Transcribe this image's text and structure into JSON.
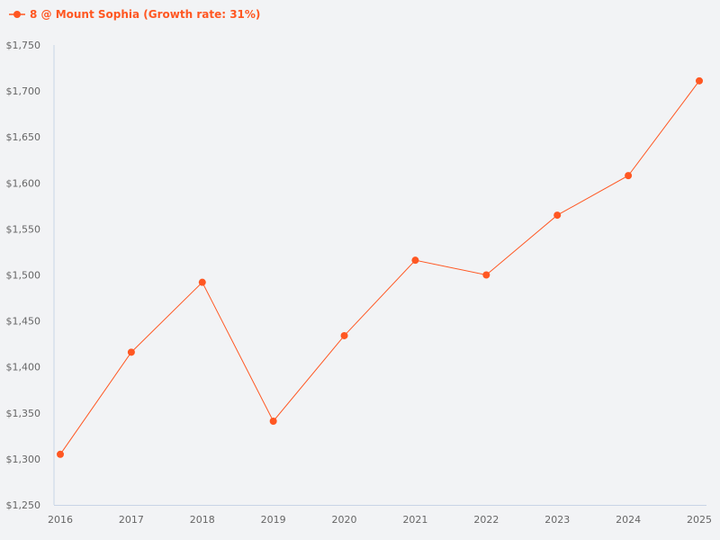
{
  "chart_data": {
    "type": "line",
    "title": "",
    "xlabel": "",
    "ylabel": "",
    "categories": [
      "2016",
      "2017",
      "2018",
      "2019",
      "2020",
      "2021",
      "2022",
      "2023",
      "2024",
      "2025"
    ],
    "series": [
      {
        "name": "8 @ Mount Sophia (Growth rate: 31%)",
        "color": "#ff5722",
        "values": [
          1305,
          1416,
          1492,
          1341,
          1434,
          1516,
          1500,
          1565,
          1608,
          1711
        ]
      }
    ],
    "ylim": [
      1250,
      1750
    ],
    "yticks": [
      1250,
      1300,
      1350,
      1400,
      1450,
      1500,
      1550,
      1600,
      1650,
      1700,
      1750
    ],
    "ytick_labels": [
      "$1,250",
      "$1,300",
      "$1,350",
      "$1,400",
      "$1,450",
      "$1,500",
      "$1,550",
      "$1,600",
      "$1,650",
      "$1,700",
      "$1,750"
    ],
    "grid": false,
    "legend_position": "top-left",
    "axis_color": "#c8d4e6"
  }
}
